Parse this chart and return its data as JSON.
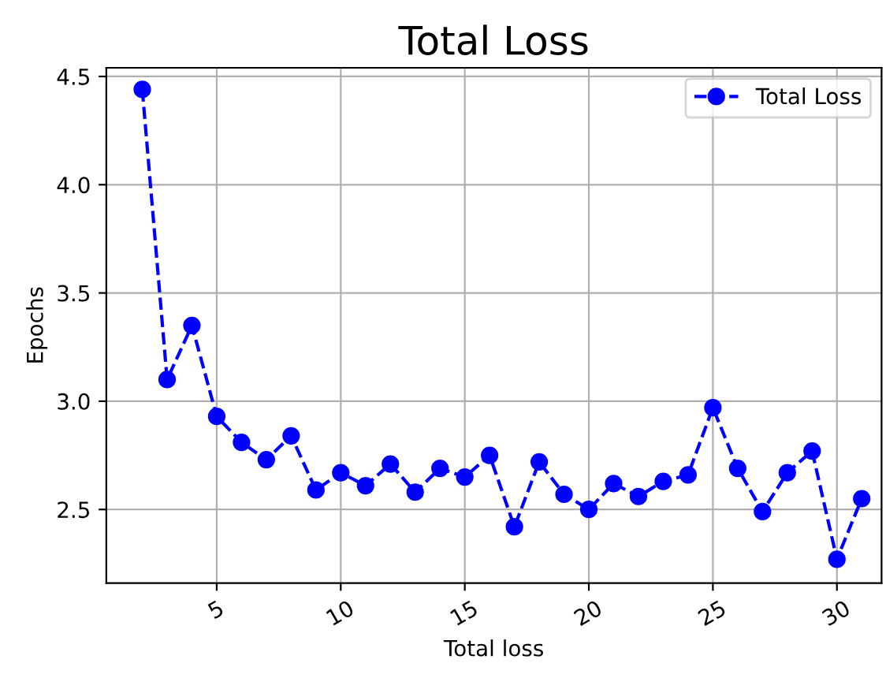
{
  "chart_data": {
    "type": "line",
    "title": "Total Loss",
    "xlabel": "Total loss",
    "ylabel": "Epochs",
    "x": [
      2,
      3,
      4,
      5,
      6,
      7,
      8,
      9,
      10,
      11,
      12,
      13,
      14,
      15,
      16,
      17,
      18,
      19,
      20,
      21,
      22,
      23,
      24,
      25,
      26,
      27,
      28,
      29,
      30,
      31
    ],
    "series": [
      {
        "name": "Total Loss",
        "color": "#0000ff",
        "values": [
          4.44,
          3.1,
          3.35,
          2.93,
          2.81,
          2.73,
          2.84,
          2.59,
          2.67,
          2.61,
          2.71,
          2.58,
          2.69,
          2.65,
          2.75,
          2.42,
          2.72,
          2.57,
          2.5,
          2.62,
          2.56,
          2.63,
          2.66,
          2.97,
          2.69,
          2.49,
          2.67,
          2.77,
          2.27,
          2.55
        ]
      }
    ],
    "xlim": [
      0.55,
      31.8
    ],
    "ylim": [
      2.16,
      4.54
    ],
    "xticks": [
      5,
      10,
      15,
      20,
      25,
      30
    ],
    "yticks": [
      2.5,
      {
        "value": 3,
        "label": "3.0"
      },
      3.5,
      {
        "value": 4,
        "label": "4.0"
      },
      4.5
    ],
    "grid": true,
    "legend": "top right",
    "marker": "circle",
    "line_style": "dashed"
  }
}
